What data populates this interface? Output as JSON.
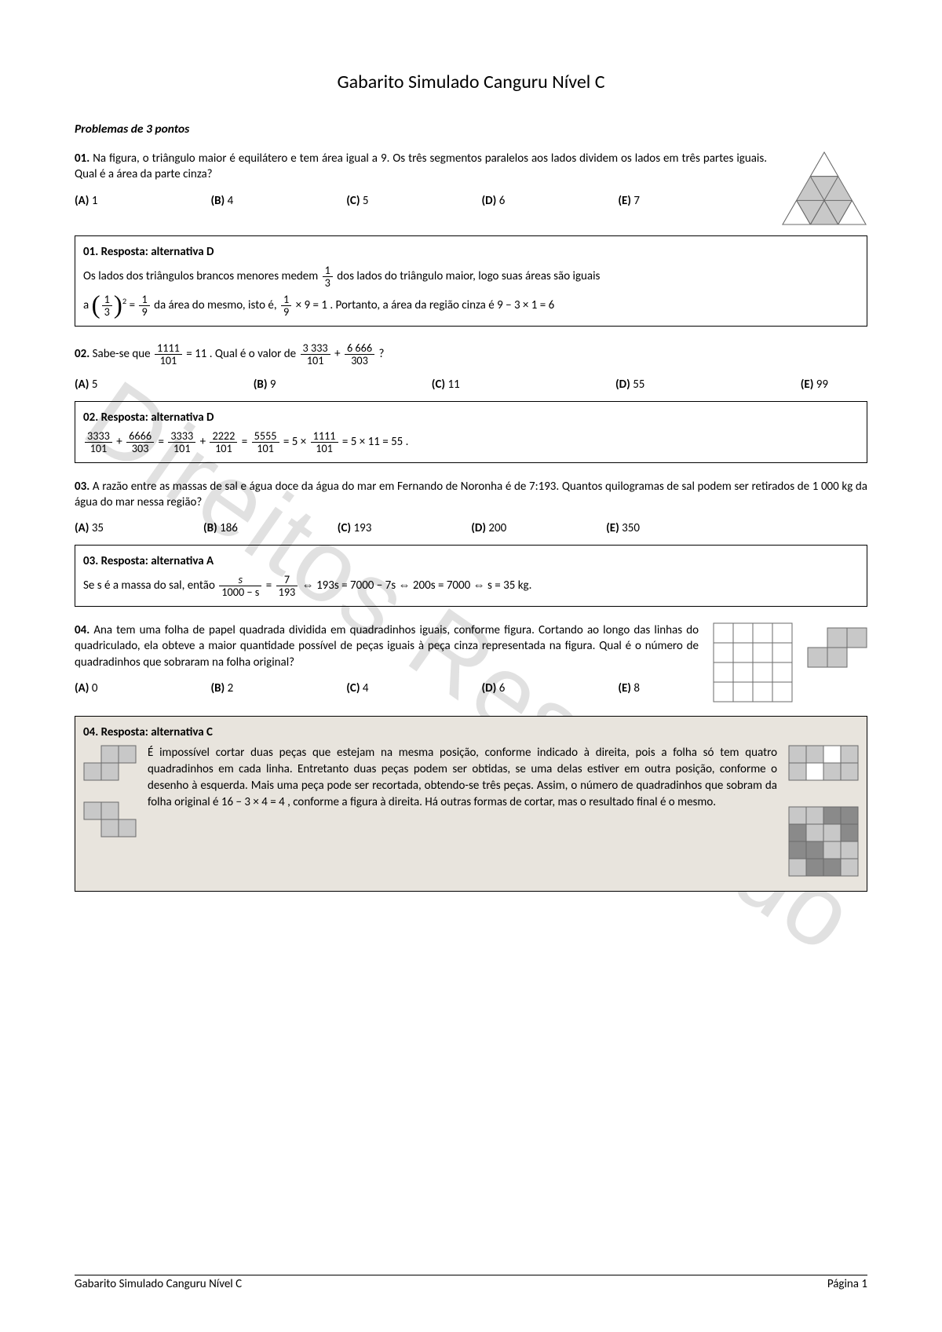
{
  "title": "Gabarito Simulado Canguru Nível C",
  "section_header": "Problemas de 3 pontos",
  "footer": {
    "left": "Gabarito Simulado Canguru Nível C",
    "right": "Página 1"
  },
  "watermark": "Direitos Reservado",
  "colors": {
    "box_shade": "#e8e4dd",
    "fig_gray": "#c8c8c8",
    "fig_darkgray": "#8a8a8a",
    "border": "#000000"
  },
  "q1": {
    "num": "01.",
    "text": "Na figura, o triângulo maior é equilátero e tem área igual a 9. Os três segmentos paralelos aos lados dividem os lados em três partes iguais. Qual é a área da parte cinza?",
    "options": {
      "A": "1",
      "B": "4",
      "C": "5",
      "D": "6",
      "E": "7"
    },
    "answer_title": "01. Resposta: alternativa D",
    "ans_p1a": "Os lados dos triângulos brancos menores medem",
    "frac1": {
      "num": "1",
      "den": "3"
    },
    "ans_p1b": "dos lados do triângulo maior, logo suas áreas são iguais",
    "ans_p2a": "a",
    "sq_frac": {
      "num": "1",
      "den": "3"
    },
    "eq1": "=",
    "frac2": {
      "num": "1",
      "den": "9"
    },
    "ans_p2b": "da área do mesmo, isto é,",
    "frac3": {
      "num": "1",
      "den": "9"
    },
    "ans_p2c": "× 9 = 1 . Portanto, a área da região cinza é  9 − 3 × 1 = 6",
    "triangle": {
      "fill_gray": "#c8c8c8",
      "stroke": "#6a6a6a"
    }
  },
  "q2": {
    "num": "02.",
    "text_a": "Sabe-se que",
    "frac1": {
      "num": "1111",
      "den": "101"
    },
    "text_b": "= 11 . Qual é o valor de",
    "frac2": {
      "num": "3 333",
      "den": "101"
    },
    "plus": "+",
    "frac3": {
      "num": "6 666",
      "den": "303"
    },
    "text_c": "?",
    "options": {
      "A": "5",
      "B": "9",
      "C": "11",
      "D": "55",
      "E": "99"
    },
    "answer_title": "02. Resposta: alternativa D",
    "ans_fracs": [
      {
        "num": "3333",
        "den": "101"
      },
      {
        "op": "+"
      },
      {
        "num": "6666",
        "den": "303"
      },
      {
        "op": "="
      },
      {
        "num": "3333",
        "den": "101"
      },
      {
        "op": "+"
      },
      {
        "num": "2222",
        "den": "101"
      },
      {
        "op": "="
      },
      {
        "num": "5555",
        "den": "101"
      },
      {
        "op": "= 5 ×"
      },
      {
        "num": "1111",
        "den": "101"
      },
      {
        "op": "= 5 × 11 = 55 ."
      }
    ]
  },
  "q3": {
    "num": "03.",
    "text": "A razão entre as massas de sal e água doce da água do mar em Fernando de Noronha é de 7:193. Quantos quilogramas de sal podem ser retirados de 1 000 kg da água do mar nessa região?",
    "options": {
      "A": "35",
      "B": "186",
      "C": "193",
      "D": "200",
      "E": "350"
    },
    "answer_title": "03. Resposta: alternativa A",
    "ans_a": "Se s é a massa do sal, então",
    "frac1": {
      "num": "s",
      "den": "1000 − s"
    },
    "eq": "=",
    "frac2": {
      "num": "7",
      "den": "193"
    },
    "ans_b": "⇔ 193s = 7000 − 7s ⇔ 200s = 7000 ⇔ s = 35 kg."
  },
  "q4": {
    "num": "04.",
    "text": "Ana tem uma folha de papel quadrada dividida em quadradinhos iguais, conforme figura. Cortando ao longo das linhas do quadriculado, ela obteve a maior quantidade possível de peças iguais à peça cinza representada na figura. Qual é o número de quadradinhos que sobraram na folha original?",
    "options": {
      "A": "0",
      "B": "2",
      "C": "4",
      "D": "6",
      "E": "8"
    },
    "answer_title": "04. Resposta: alternativa C",
    "ans_text": "É impossível cortar duas peças que estejam na mesma posição, conforme indicado à direita, pois a folha só tem quatro quadradinhos em cada linha. Entretanto duas peças podem ser obtidas, se uma delas estiver em outra posição, conforme o desenho à esquerda. Mais uma peça pode ser recortada, obtendo-se três peças. Assim, o número de quadradinhos que sobram da folha original é 16 − 3 × 4 = 4 , conforme a figura à direita. Há outras formas de cortar, mas o resultado final é o mesmo.",
    "grid": {
      "size": 4,
      "cell": 25,
      "stroke": "#6a6a6a",
      "fill_light": "#c8c8c8",
      "fill_dark": "#8a8a8a"
    },
    "piece": {
      "cells": [
        [
          1,
          0
        ],
        [
          2,
          0
        ],
        [
          0,
          1
        ],
        [
          1,
          1
        ]
      ]
    },
    "fig_right1_gray": [
      [
        0,
        0
      ],
      [
        1,
        0
      ],
      [
        3,
        0
      ],
      [
        0,
        1
      ],
      [
        2,
        1
      ],
      [
        3,
        1
      ]
    ],
    "fig_right2_light": [
      [
        0,
        0
      ],
      [
        1,
        0
      ],
      [
        1,
        1
      ],
      [
        2,
        1
      ],
      [
        2,
        2
      ],
      [
        3,
        2
      ],
      [
        0,
        3
      ],
      [
        3,
        3
      ]
    ],
    "fig_right2_dark": [
      [
        2,
        0
      ],
      [
        3,
        0
      ],
      [
        0,
        1
      ],
      [
        3,
        1
      ],
      [
        0,
        2
      ],
      [
        1,
        2
      ],
      [
        1,
        3
      ],
      [
        2,
        3
      ]
    ],
    "fig_left1_gray": [
      [
        1,
        0
      ],
      [
        2,
        0
      ],
      [
        0,
        1
      ],
      [
        1,
        1
      ]
    ],
    "fig_left2_gray": [
      [
        0,
        0
      ],
      [
        1,
        0
      ],
      [
        1,
        1
      ],
      [
        2,
        1
      ]
    ]
  }
}
